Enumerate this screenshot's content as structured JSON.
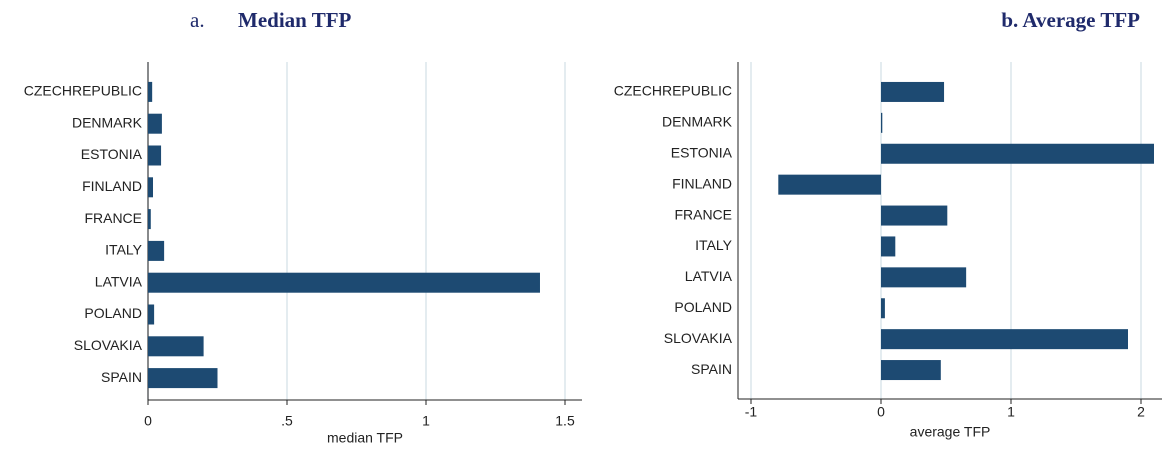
{
  "chart_data": [
    {
      "type": "bar",
      "orientation": "horizontal",
      "title_prefix": "a.",
      "title": "Median TFP",
      "xlabel": "median TFP",
      "categories": [
        "CZECHREPUBLIC",
        "DENMARK",
        "ESTONIA",
        "FINLAND",
        "FRANCE",
        "ITALY",
        "LATVIA",
        "POLAND",
        "SLOVAKIA",
        "SPAIN"
      ],
      "values": [
        0.015,
        0.05,
        0.047,
        0.018,
        0.01,
        0.058,
        1.41,
        0.022,
        0.2,
        0.25
      ],
      "color": "#1d4a72",
      "xlim": [
        0,
        1.55
      ],
      "xticks": [
        0,
        {
          "value": 0.5,
          "label": ".5"
        },
        1,
        1.5
      ],
      "grid": true
    },
    {
      "type": "bar",
      "orientation": "horizontal",
      "title": "b. Average TFP",
      "xlabel": "average TFP",
      "categories": [
        "CZECHREPUBLIC",
        "DENMARK",
        "ESTONIA",
        "FINLAND",
        "FRANCE",
        "ITALY",
        "LATVIA",
        "POLAND",
        "SLOVAKIA",
        "SPAIN"
      ],
      "values": [
        0.485,
        0.01,
        2.1,
        -0.79,
        0.51,
        0.11,
        0.655,
        0.03,
        1.9,
        0.46
      ],
      "color": "#1d4a72",
      "xlim": [
        -1.1,
        2.15
      ],
      "xticks": [
        -1,
        0,
        1,
        2
      ],
      "grid": true
    }
  ]
}
